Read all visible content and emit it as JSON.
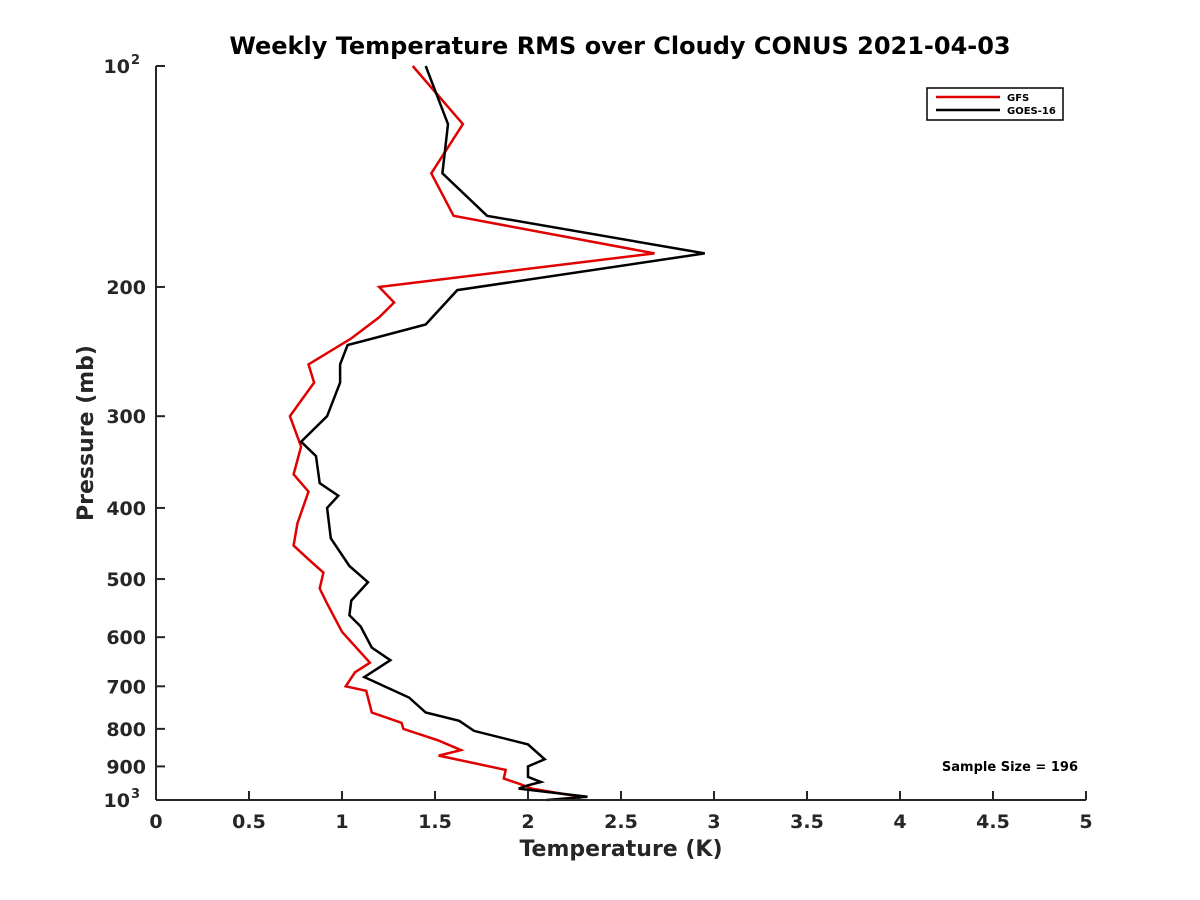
{
  "chart_data": {
    "type": "line",
    "title": "Weekly Temperature RMS over Cloudy CONUS 2021-04-03",
    "xlabel": "Temperature (K)",
    "ylabel": "Pressure (mb)",
    "xlim": [
      0,
      5
    ],
    "ylim": [
      100,
      1000
    ],
    "y_scale": "log",
    "y_reversed": true,
    "grid": false,
    "legend_position": "top-right",
    "annotation": "Sample Size = 196",
    "x_ticks": [
      {
        "value": 0,
        "label": "0"
      },
      {
        "value": 0.5,
        "label": "0.5"
      },
      {
        "value": 1,
        "label": "1"
      },
      {
        "value": 1.5,
        "label": "1.5"
      },
      {
        "value": 2,
        "label": "2"
      },
      {
        "value": 2.5,
        "label": "2.5"
      },
      {
        "value": 3,
        "label": "3"
      },
      {
        "value": 3.5,
        "label": "3.5"
      },
      {
        "value": 4,
        "label": "4"
      },
      {
        "value": 4.5,
        "label": "4.5"
      },
      {
        "value": 5,
        "label": "5"
      }
    ],
    "y_ticks": [
      {
        "value": 100,
        "label": "10",
        "exponent": "2"
      },
      {
        "value": 200,
        "label": "200"
      },
      {
        "value": 300,
        "label": "300"
      },
      {
        "value": 400,
        "label": "400"
      },
      {
        "value": 500,
        "label": "500"
      },
      {
        "value": 600,
        "label": "600"
      },
      {
        "value": 700,
        "label": "700"
      },
      {
        "value": 800,
        "label": "800"
      },
      {
        "value": 900,
        "label": "900"
      },
      {
        "value": 1000,
        "label": "10",
        "exponent": "3"
      }
    ],
    "series": [
      {
        "name": "GFS",
        "color": "#e00000",
        "points": [
          [
            1.38,
            100
          ],
          [
            1.65,
            120
          ],
          [
            1.48,
            140
          ],
          [
            1.6,
            160
          ],
          [
            2.68,
            180
          ],
          [
            1.2,
            200
          ],
          [
            1.28,
            210
          ],
          [
            1.2,
            220
          ],
          [
            1.05,
            235
          ],
          [
            0.82,
            255
          ],
          [
            0.85,
            270
          ],
          [
            0.72,
            300
          ],
          [
            0.78,
            330
          ],
          [
            0.74,
            360
          ],
          [
            0.82,
            380
          ],
          [
            0.76,
            420
          ],
          [
            0.74,
            450
          ],
          [
            0.82,
            470
          ],
          [
            0.9,
            490
          ],
          [
            0.88,
            515
          ],
          [
            0.92,
            540
          ],
          [
            1.0,
            590
          ],
          [
            1.15,
            650
          ],
          [
            1.07,
            670
          ],
          [
            1.02,
            700
          ],
          [
            1.13,
            710
          ],
          [
            1.16,
            760
          ],
          [
            1.32,
            785
          ],
          [
            1.33,
            800
          ],
          [
            1.52,
            830
          ],
          [
            1.64,
            855
          ],
          [
            1.52,
            870
          ],
          [
            1.88,
            910
          ],
          [
            1.87,
            935
          ],
          [
            1.95,
            950
          ],
          [
            2.02,
            965
          ],
          [
            2.28,
            990
          ],
          [
            2.27,
            1000
          ]
        ]
      },
      {
        "name": "GOES-16",
        "color": "#000000",
        "points": [
          [
            1.45,
            100
          ],
          [
            1.57,
            120
          ],
          [
            1.54,
            140
          ],
          [
            1.78,
            160
          ],
          [
            2.95,
            180
          ],
          [
            1.62,
            202
          ],
          [
            1.45,
            225
          ],
          [
            1.03,
            240
          ],
          [
            0.99,
            255
          ],
          [
            0.99,
            270
          ],
          [
            0.92,
            300
          ],
          [
            0.78,
            325
          ],
          [
            0.86,
            340
          ],
          [
            0.88,
            370
          ],
          [
            0.98,
            385
          ],
          [
            0.92,
            400
          ],
          [
            0.94,
            440
          ],
          [
            1.04,
            480
          ],
          [
            1.14,
            505
          ],
          [
            1.05,
            535
          ],
          [
            1.04,
            560
          ],
          [
            1.1,
            580
          ],
          [
            1.16,
            620
          ],
          [
            1.26,
            645
          ],
          [
            1.12,
            680
          ],
          [
            1.36,
            725
          ],
          [
            1.45,
            760
          ],
          [
            1.63,
            780
          ],
          [
            1.71,
            805
          ],
          [
            2.0,
            840
          ],
          [
            2.09,
            880
          ],
          [
            2.0,
            900
          ],
          [
            2.0,
            930
          ],
          [
            2.07,
            945
          ],
          [
            2.0,
            955
          ],
          [
            1.95,
            965
          ],
          [
            2.32,
            990
          ],
          [
            2.1,
            1000
          ]
        ]
      }
    ]
  }
}
